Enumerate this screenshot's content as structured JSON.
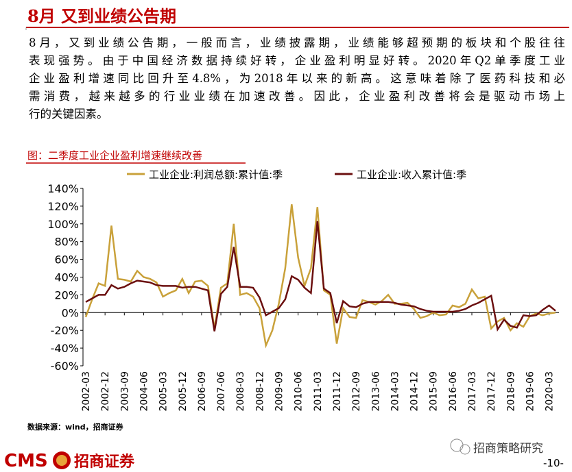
{
  "header": {
    "title": "8月 又到业绩公告期"
  },
  "paragraph": {
    "lines": [
      "8月，又到业绩公告期，一般而言，业绩披露期，业绩能够超预期的板块和个股往往",
      "表现强势。由于中国经济数据持续好转，企业盈利明显好转。2020年Q2单季度工业",
      "企业盈利增速同比回升至4.8%，为2018年以来的新高。这意味着除了医药科技和必",
      "需消费，越来越多的行业业绩在加速改善。因此，企业盈利改善将会是驱动市场上",
      "行的关键因素。"
    ]
  },
  "chart_data": {
    "type": "line",
    "title": "图：二季度工业企业盈利增速继续改善",
    "categories": [
      "2002-03",
      null,
      null,
      "2002-12",
      null,
      null,
      "2003-09",
      null,
      null,
      "2004-06",
      null,
      null,
      "2005-03",
      null,
      null,
      "2005-12",
      null,
      null,
      "2006-09",
      null,
      null,
      "2007-06",
      null,
      null,
      "2008-03",
      null,
      null,
      "2008-12",
      null,
      null,
      "2009-09",
      null,
      null,
      "2010-06",
      null,
      null,
      "2011-03",
      null,
      null,
      "2011-12",
      null,
      null,
      "2012-09",
      null,
      null,
      "2013-06",
      null,
      null,
      "2014-03",
      null,
      null,
      "2014-12",
      null,
      null,
      "2015-09",
      null,
      null,
      "2016-06",
      null,
      null,
      "2017-03",
      null,
      null,
      "2017-12",
      null,
      null,
      "2018-09",
      null,
      null,
      "2019-06",
      null,
      null,
      "2020-03",
      null
    ],
    "series": [
      {
        "name": "工业企业:利润总额:累计值:季",
        "color": "#c9a13a",
        "values": [
          -5,
          15,
          33,
          30,
          98,
          38,
          37,
          35,
          47,
          40,
          38,
          34,
          18,
          22,
          25,
          38,
          22,
          35,
          36,
          30,
          -18,
          28,
          33,
          100,
          20,
          22,
          18,
          5,
          -37,
          -20,
          10,
          50,
          122,
          62,
          30,
          50,
          119,
          25,
          20,
          -35,
          5,
          -5,
          -6,
          14,
          12,
          9,
          13,
          20,
          10,
          10,
          11,
          4,
          -6,
          -4,
          0,
          -3,
          -2,
          8,
          6,
          10,
          26,
          16,
          18,
          -18,
          -10,
          -6,
          -20,
          -12,
          -16,
          -4,
          -1,
          -3,
          -1,
          0
        ]
      },
      {
        "name": "工业企业:收入累计值:季",
        "color": "#6b0f0f",
        "values": [
          12,
          16,
          20,
          20,
          31,
          27,
          29,
          33,
          36,
          35,
          34,
          31,
          30,
          30,
          30,
          28,
          29,
          29,
          27,
          25,
          -21,
          21,
          29,
          74,
          29,
          29,
          28,
          17,
          -3,
          1,
          5,
          15,
          41,
          37,
          28,
          22,
          103,
          27,
          22,
          -12,
          13,
          7,
          6,
          10,
          12,
          12,
          12,
          12,
          11,
          9,
          8,
          7,
          4,
          2,
          1,
          1,
          1,
          1,
          2,
          4,
          8,
          11,
          15,
          19,
          -19,
          -8,
          -15,
          -17,
          -3,
          -4,
          -3,
          3,
          8,
          2
        ]
      }
    ],
    "ylim": [
      -60,
      140
    ],
    "yticks": [
      {
        "value": -60,
        "label": "-60%"
      },
      {
        "value": -40,
        "label": "-40%"
      },
      {
        "value": -20,
        "label": "-20%"
      },
      {
        "value": 0,
        "label": "0%"
      },
      {
        "value": 20,
        "label": "20%"
      },
      {
        "value": 40,
        "label": "40%"
      },
      {
        "value": 60,
        "label": "60%"
      },
      {
        "value": 80,
        "label": "80%"
      },
      {
        "value": 100,
        "label": "100%"
      },
      {
        "value": 120,
        "label": "120%"
      },
      {
        "value": 140,
        "label": "140%"
      }
    ],
    "source": "数据来源：wind，招商证券"
  },
  "footer": {
    "logo": "CMS",
    "company": "招商证券",
    "account": "招商策略研究",
    "page": "-10-"
  }
}
